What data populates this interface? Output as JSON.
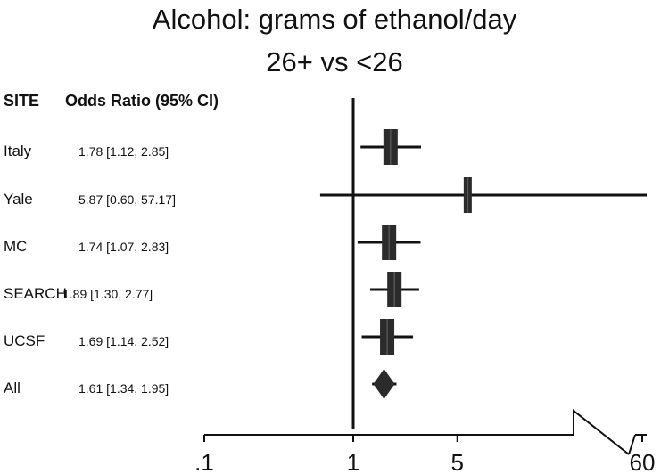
{
  "header": {
    "title_line1": "Alcohol: grams of ethanol/day",
    "title_line2": "26+ vs <26",
    "col_site": "SITE",
    "col_or": "Odds Ratio (95% CI)"
  },
  "rows": [
    {
      "site": "Italy",
      "ci_text": "1.78 [1.12, 2.85]"
    },
    {
      "site": "Yale",
      "ci_text": "5.87 [0.60, 57.17]"
    },
    {
      "site": "MC",
      "ci_text": "1.74 [1.07, 2.83]"
    },
    {
      "site": "SEARCH",
      "ci_text": "1.89 [1.30, 2.77]"
    },
    {
      "site": "UCSF",
      "ci_text": "1.69 [1.14, 2.52]"
    },
    {
      "site": "All",
      "ci_text": "1.61 [1.34, 1.95]"
    }
  ],
  "chart_data": {
    "type": "forest",
    "title": "Alcohol: grams of ethanol/day 26+ vs <26",
    "x_scale": "log",
    "reference_line": 1,
    "xticks": [
      0.1,
      1,
      5,
      60
    ],
    "xtick_labels": [
      ".1",
      "1",
      "5",
      "60"
    ],
    "axis_break": "between 5 and 60",
    "series": [
      {
        "name": "Italy",
        "or": 1.78,
        "lo": 1.12,
        "hi": 2.85,
        "marker": "square"
      },
      {
        "name": "Yale",
        "or": 5.87,
        "lo": 0.6,
        "hi": 57.17,
        "marker": "square"
      },
      {
        "name": "MC",
        "or": 1.74,
        "lo": 1.07,
        "hi": 2.83,
        "marker": "square"
      },
      {
        "name": "SEARCH",
        "or": 1.89,
        "lo": 1.3,
        "hi": 2.77,
        "marker": "square"
      },
      {
        "name": "UCSF",
        "or": 1.69,
        "lo": 1.14,
        "hi": 2.52,
        "marker": "square"
      },
      {
        "name": "All",
        "or": 1.61,
        "lo": 1.34,
        "hi": 1.95,
        "marker": "diamond"
      }
    ],
    "colors": {
      "ink": "#111111",
      "marker": "#2b2b2b"
    }
  }
}
